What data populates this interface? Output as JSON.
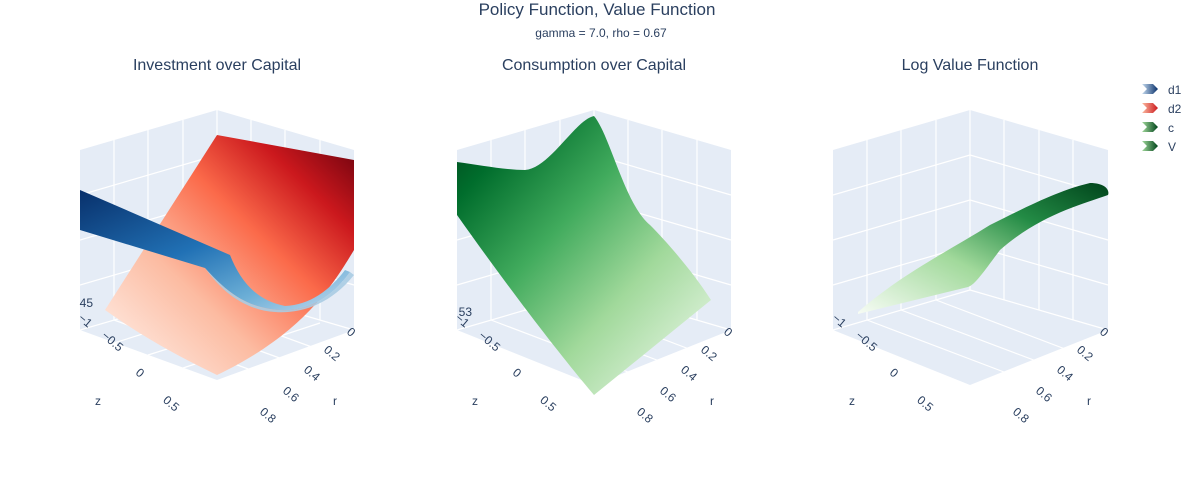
{
  "title": "Policy Function, Value Function",
  "subtitle": "gamma = 7.0, rho = 0.67",
  "legend": [
    {
      "name": "d1",
      "color": "#2171b5"
    },
    {
      "name": "d2",
      "color": "#cb181d"
    },
    {
      "name": "c",
      "color": "#238b45"
    },
    {
      "name": "V",
      "color": "#238b45"
    }
  ],
  "colorscales": {
    "Blues": [
      "#08306b",
      "#2171b5",
      "#6baed6",
      "#c6dbef"
    ],
    "Reds": [
      "#fff5f0",
      "#fc9272",
      "#ef3b2c",
      "#67000d"
    ],
    "Greens": [
      "#f7fcf5",
      "#74c476",
      "#238b45",
      "#00441b"
    ]
  },
  "chart_data": [
    {
      "type": "surface",
      "title": "Investment over Capital",
      "xlabel": "r",
      "ylabel": "z",
      "zlabel": "",
      "r_ticks": [
        "0",
        "0.2",
        "0.4",
        "0.6",
        "0.8"
      ],
      "z_ticks": [
        "−1",
        "−0.5",
        "0",
        "0.5"
      ],
      "vertical_tick": "45",
      "series": [
        {
          "name": "d1",
          "colorscale": "Blues"
        },
        {
          "name": "d2",
          "colorscale": "Reds"
        }
      ]
    },
    {
      "type": "surface",
      "title": "Consumption over Capital",
      "xlabel": "r",
      "ylabel": "z",
      "zlabel": "",
      "r_ticks": [
        "0",
        "0.2",
        "0.4",
        "0.6",
        "0.8"
      ],
      "z_ticks": [
        "−1",
        "−0.5",
        "0",
        "0.5"
      ],
      "vertical_tick": "53",
      "series": [
        {
          "name": "c",
          "colorscale": "Greens"
        }
      ]
    },
    {
      "type": "surface",
      "title": "Log Value Function",
      "xlabel": "r",
      "ylabel": "z",
      "zlabel": "",
      "r_ticks": [
        "0",
        "0.2",
        "0.4",
        "0.6",
        "0.8"
      ],
      "z_ticks": [
        "−1",
        "−0.5",
        "0",
        "0.5"
      ],
      "vertical_tick": "",
      "series": [
        {
          "name": "V",
          "colorscale": "Greens"
        }
      ]
    }
  ]
}
